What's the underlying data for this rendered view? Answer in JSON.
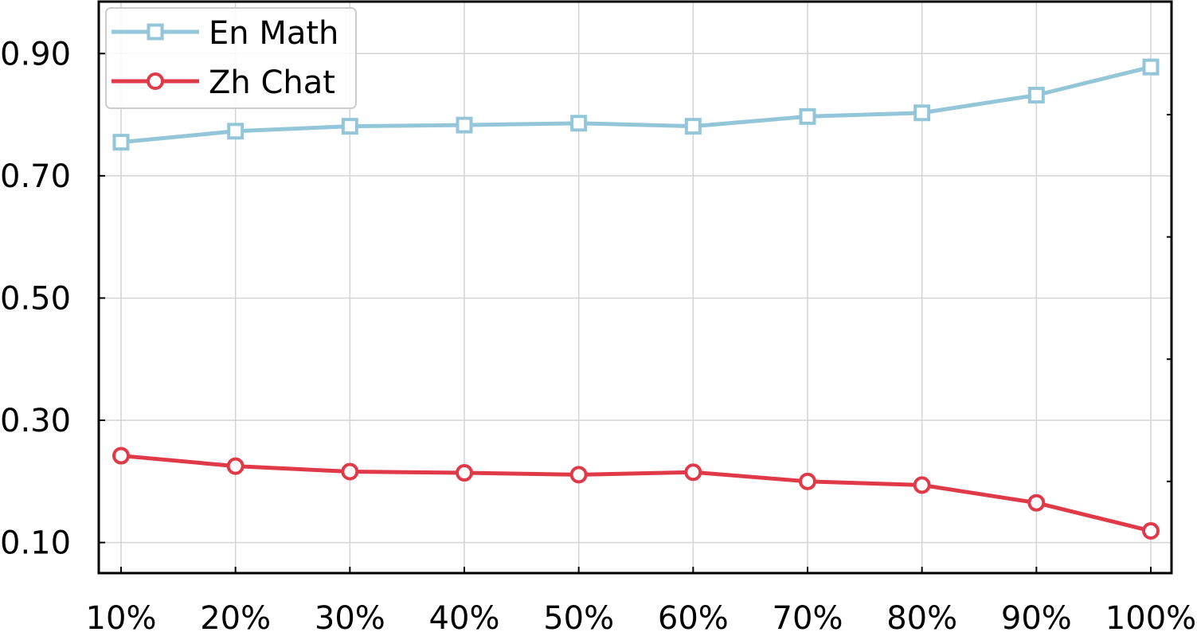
{
  "chart_data": {
    "type": "line",
    "categories": [
      "10%",
      "20%",
      "30%",
      "40%",
      "50%",
      "60%",
      "70%",
      "80%",
      "90%",
      "100%"
    ],
    "series": [
      {
        "name": "En Math",
        "color": "#93c6d9",
        "marker": "square",
        "values": [
          0.755,
          0.773,
          0.781,
          0.783,
          0.786,
          0.781,
          0.797,
          0.803,
          0.832,
          0.878
        ]
      },
      {
        "name": "Zh Chat",
        "color": "#e03a48",
        "marker": "circle",
        "values": [
          0.242,
          0.225,
          0.216,
          0.214,
          0.211,
          0.215,
          0.2,
          0.194,
          0.165,
          0.119
        ]
      }
    ],
    "yticks": [
      0.1,
      0.3,
      0.5,
      0.7,
      0.9
    ],
    "ytick_labels": [
      "0.10",
      "0.30",
      "0.50",
      "0.70",
      "0.90"
    ],
    "ylim": [
      0.05,
      0.985
    ],
    "grid": true,
    "legend_position": "top-left",
    "title": "",
    "xlabel": "",
    "ylabel": ""
  }
}
